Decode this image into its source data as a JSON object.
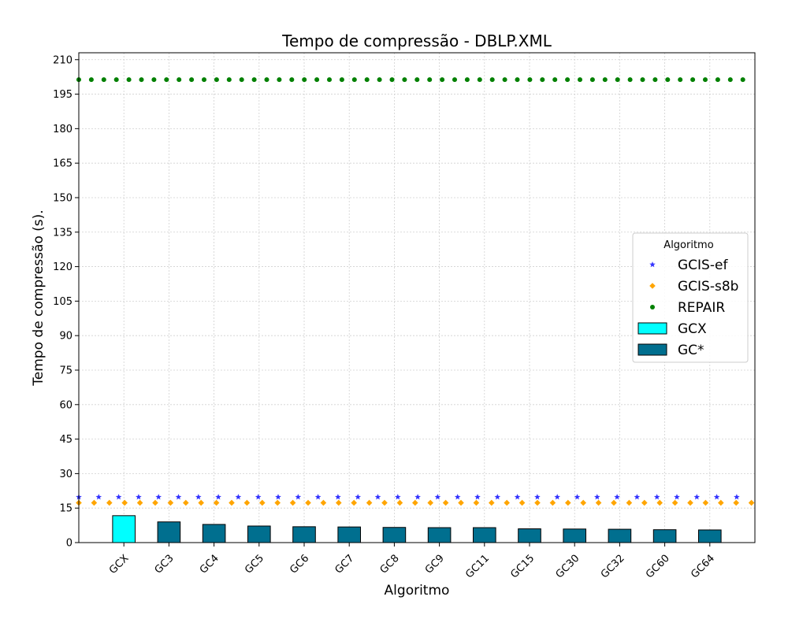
{
  "chart_data": {
    "type": "bar",
    "title": "Tempo de compressão -  DBLP.XML",
    "xlabel": "Algoritmo",
    "ylabel": "Tempo de compressão (s).",
    "ylim": [
      0,
      213
    ],
    "yticks": [
      0,
      15,
      30,
      45,
      60,
      75,
      90,
      105,
      120,
      135,
      150,
      165,
      180,
      195,
      210
    ],
    "grid": true,
    "categories": [
      "GCX",
      "GC3",
      "GC4",
      "GC5",
      "GC6",
      "GC7",
      "GC8",
      "GC9",
      "GC11",
      "GC15",
      "GC30",
      "GC32",
      "GC60",
      "GC64"
    ],
    "series": [
      {
        "name": "GCX",
        "kind": "bar",
        "color": "#00ffff",
        "values": [
          11.7,
          null,
          null,
          null,
          null,
          null,
          null,
          null,
          null,
          null,
          null,
          null,
          null,
          null
        ]
      },
      {
        "name": "GC*",
        "kind": "bar",
        "color": "#006f8f",
        "values": [
          null,
          9.0,
          7.9,
          7.2,
          6.9,
          6.8,
          6.6,
          6.5,
          6.5,
          6.0,
          5.9,
          5.8,
          5.6,
          5.5
        ]
      },
      {
        "name": "GCIS-ef",
        "kind": "reference-line",
        "marker": "star",
        "color": "#3333ff",
        "value": 19.8
      },
      {
        "name": "GCIS-s8b",
        "kind": "reference-line",
        "marker": "diamond",
        "color": "#ffa500",
        "value": 17.3
      },
      {
        "name": "REPAIR",
        "kind": "reference-line",
        "marker": "circle",
        "color": "#008000",
        "value": 201.3
      }
    ],
    "legend": {
      "title": "Algoritmo",
      "placement": "center-right",
      "entries": [
        "GCIS-ef",
        "GCIS-s8b",
        "REPAIR",
        "GCX",
        "GC*"
      ]
    }
  }
}
